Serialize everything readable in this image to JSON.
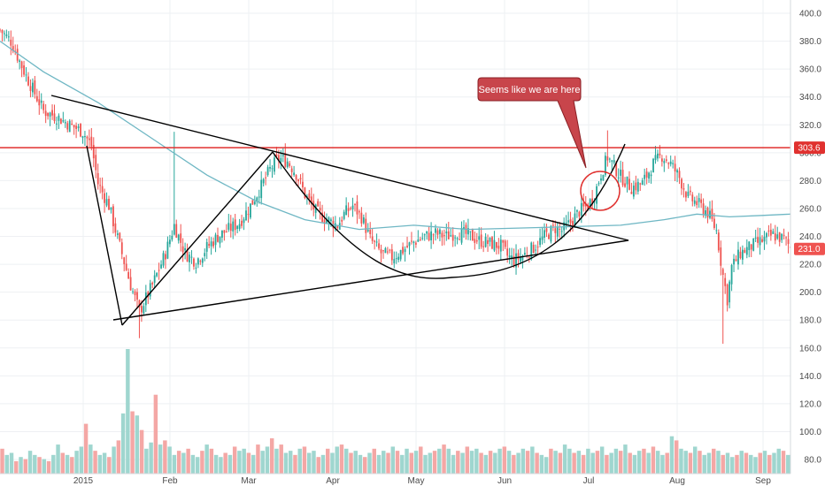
{
  "chart_data": {
    "type": "candlestick",
    "title": "",
    "xlabel": "",
    "ylabel": "",
    "ylim": [
      74,
      410
    ],
    "x_ticks": [
      "2015",
      "Feb",
      "Mar",
      "Apr",
      "May",
      "Jun",
      "Jul",
      "Aug",
      "Sep"
    ],
    "y_ticks": [
      "80.0",
      "100.0",
      "120.0",
      "140.0",
      "160.0",
      "180.0",
      "200.0",
      "220.0",
      "240.0",
      "260.0",
      "280.0",
      "300.0",
      "320.0",
      "340.0",
      "360.0",
      "380.0",
      "400.0"
    ],
    "resistance_level": 303.6,
    "resistance_label": "303.6",
    "last_price": 231.0,
    "last_price_label": "231.0",
    "price_path": [
      [
        0,
        388
      ],
      [
        5,
        380
      ],
      [
        12,
        355
      ],
      [
        20,
        330
      ],
      [
        27,
        325
      ],
      [
        32,
        320
      ],
      [
        38,
        315
      ],
      [
        42,
        305
      ],
      [
        45,
        278
      ],
      [
        50,
        262
      ],
      [
        55,
        233
      ],
      [
        60,
        205
      ],
      [
        64,
        186
      ],
      [
        70,
        205
      ],
      [
        76,
        228
      ],
      [
        80,
        248
      ],
      [
        85,
        228
      ],
      [
        90,
        222
      ],
      [
        95,
        232
      ],
      [
        100,
        240
      ],
      [
        105,
        245
      ],
      [
        110,
        250
      ],
      [
        115,
        262
      ],
      [
        120,
        276
      ],
      [
        124,
        288
      ],
      [
        128,
        296
      ],
      [
        132,
        294
      ],
      [
        136,
        285
      ],
      [
        140,
        270
      ],
      [
        145,
        258
      ],
      [
        150,
        252
      ],
      [
        155,
        248
      ],
      [
        158,
        256
      ],
      [
        162,
        262
      ],
      [
        166,
        254
      ],
      [
        170,
        238
      ],
      [
        175,
        228
      ],
      [
        180,
        225
      ],
      [
        185,
        230
      ],
      [
        190,
        236
      ],
      [
        195,
        240
      ],
      [
        200,
        242
      ],
      [
        205,
        240
      ],
      [
        210,
        243
      ],
      [
        215,
        241
      ],
      [
        220,
        237
      ],
      [
        225,
        235
      ],
      [
        230,
        233
      ],
      [
        233,
        226
      ],
      [
        236,
        223
      ],
      [
        240,
        226
      ],
      [
        245,
        232
      ],
      [
        250,
        240
      ],
      [
        255,
        246
      ],
      [
        258,
        244
      ],
      [
        262,
        250
      ],
      [
        266,
        258
      ],
      [
        270,
        262
      ],
      [
        273,
        270
      ],
      [
        276,
        285
      ],
      [
        279,
        297
      ],
      [
        282,
        290
      ],
      [
        285,
        283
      ],
      [
        290,
        275
      ],
      [
        295,
        278
      ],
      [
        300,
        292
      ],
      [
        304,
        298
      ],
      [
        308,
        292
      ],
      [
        312,
        282
      ],
      [
        316,
        268
      ],
      [
        320,
        264
      ],
      [
        325,
        257
      ],
      [
        329,
        244
      ],
      [
        332,
        212
      ],
      [
        334,
        195
      ],
      [
        336,
        218
      ],
      [
        340,
        228
      ],
      [
        345,
        233
      ],
      [
        350,
        237
      ],
      [
        355,
        241
      ],
      [
        360,
        238
      ],
      [
        363,
        232
      ]
    ],
    "ma_path": [
      [
        0,
        380
      ],
      [
        20,
        358
      ],
      [
        45,
        336
      ],
      [
        70,
        310
      ],
      [
        95,
        284
      ],
      [
        118,
        265
      ],
      [
        140,
        252
      ],
      [
        165,
        245
      ],
      [
        190,
        248
      ],
      [
        215,
        245
      ],
      [
        240,
        246
      ],
      [
        262,
        247
      ],
      [
        285,
        248
      ],
      [
        305,
        252
      ],
      [
        320,
        256
      ],
      [
        335,
        254
      ],
      [
        350,
        255
      ],
      [
        363,
        256
      ]
    ],
    "volume_bars": [
      12,
      9,
      10,
      6,
      8,
      7,
      11,
      9,
      8,
      7,
      6,
      9,
      14,
      10,
      9,
      8,
      11,
      13,
      24,
      14,
      11,
      9,
      10,
      8,
      13,
      16,
      29,
      60,
      30,
      28,
      21,
      12,
      15,
      38,
      14,
      16,
      13,
      9,
      11,
      10,
      12,
      9,
      8,
      11,
      14,
      12,
      9,
      8,
      10,
      9,
      13,
      11,
      12,
      10,
      9,
      14,
      11,
      13,
      17,
      12,
      14,
      10,
      11,
      9,
      12,
      13,
      10,
      11,
      8,
      9,
      12,
      10,
      13,
      14,
      12,
      10,
      11,
      9,
      8,
      10,
      12,
      9,
      11,
      10,
      13,
      11,
      9,
      12,
      10,
      11,
      13,
      9,
      10,
      11,
      12,
      14,
      12,
      9,
      11,
      10,
      13,
      11,
      12,
      10,
      9,
      11,
      10,
      12,
      13,
      11,
      9,
      10,
      12,
      11,
      13,
      10,
      9,
      8,
      12,
      11,
      10,
      14,
      12,
      10,
      11,
      9,
      12,
      10,
      11,
      13,
      9,
      10,
      12,
      11,
      14,
      10,
      9,
      11,
      12,
      10,
      13,
      11,
      9,
      10,
      18,
      16,
      12,
      11,
      10,
      13,
      11,
      9,
      10,
      12,
      11,
      9,
      10,
      8,
      9,
      11,
      10,
      9,
      8,
      10,
      11,
      9,
      10,
      12,
      11,
      9
    ],
    "annotations": {
      "callout_text": "Seems like we are here"
    },
    "colors": {
      "up": "#26a69a",
      "down": "#ef5350",
      "resistance": "#e0312f",
      "ma": "#6fb7c4",
      "drawing": "#000000",
      "callout_fill": "#c8454b",
      "callout_border": "#8a1f24"
    }
  }
}
